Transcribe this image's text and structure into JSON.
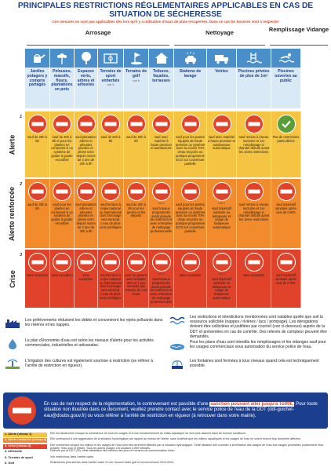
{
  "title": "Principales restrictions réglementaires applicables en cas de situation de sécheresse",
  "subtitle": "Ces mesures ne sont pas applicables dès lors qu'il y a utilisation d'eaux de pluie récupérées. Dans ce cas les horaires sont à respecter",
  "categories": {
    "arrosage": "Arrosage",
    "nettoyage": "Nettoyage",
    "remplissage": "Remplissage Vidange"
  },
  "usages": [
    {
      "label": "Jardins potagers y compris partagés",
      "note": "",
      "icon": "watering-can-icon"
    },
    {
      "label": "Pelouses, massifs, fleurs, plantations en pots",
      "note": "",
      "icon": "flower-icon"
    },
    {
      "label": "Espaces verts, arbres et arbustes",
      "note": "",
      "icon": "tree-icon"
    },
    {
      "label": "Terrains de sport enherbés",
      "note": "voir 5",
      "icon": "sport-field-icon"
    },
    {
      "label": "Terrains de golf",
      "note": "voir 6",
      "icon": "golf-icon"
    },
    {
      "label": "Toitures, façades, terrasses",
      "note": "",
      "icon": "house-icon"
    },
    {
      "label": "Stations de lavage",
      "note": "",
      "icon": "car-wash-icon"
    },
    {
      "label": "Voiries",
      "note": "",
      "icon": "truck-icon"
    },
    {
      "label": "Piscines privées de plus de 1m³",
      "note": "",
      "icon": "pool-icon"
    },
    {
      "label": "Piscines ouvertes au public",
      "note": "",
      "icon": "swimmer-icon"
    }
  ],
  "levels": [
    {
      "label": "Alerte",
      "num": "1",
      "color": "#f6c443",
      "cells": [
        {
          "text": "sauf de 20h à 8h",
          "sign": "no-entry",
          "note": ""
        },
        {
          "text": "sauf de 20h à 8h et pour les plantes en contenant si un système de goutte à goutte est utilisé",
          "sign": "no-entry",
          "note": ""
        },
        {
          "text": "sauf plantation arbres et arbustes plantés en pleine terre depuis moins de 2 ans de 20h à 8h",
          "sign": "no-entry",
          "note": ""
        },
        {
          "text": "sauf de 20h à 8h",
          "sign": "no-entry",
          "note": ""
        },
        {
          "text": "sauf de 20h à 8h",
          "sign": "no-entry",
          "note": ""
        },
        {
          "text": "sauf avec matériel à haute pression et autolaveuse",
          "sign": "no-entry",
          "note": ""
        },
        {
          "text": "sauf pour les postes équipés de haute pression ou système avec au moins 70% d'eau recyclée ou portique programme ECO sur couverture partielle",
          "sign": "no-entry",
          "note": ""
        },
        {
          "text": "sauf avec matériel à haute pression et autolaveuse automatique",
          "sign": "no-entry",
          "note": ""
        },
        {
          "text": "sauf remise à niveau nocturne et 1er remplissage si chantier débuté avant les 1ères restrictions",
          "sign": "no-entry",
          "note": ""
        },
        {
          "text": "Pas de restrictions particulières",
          "sign": "check",
          "note": ""
        }
      ]
    },
    {
      "label": "Alerte renforcée",
      "num": "2",
      "color": "#f18b2b",
      "cells": [
        {
          "text": "sauf de 20h à 8h",
          "sign": "no-entry",
          "note": ""
        },
        {
          "text": "sauf pour les plantes en contenant si un système de goutte à goutte est utilisé",
          "sign": "no-entry",
          "note": ""
        },
        {
          "text": "sauf plantation arbres et arbustes plantés en pleine terre depuis moins de 2 ans de 20h à 8h",
          "sign": "no-entry",
          "note": ""
        },
        {
          "text": "sauf terrains à enjeu national ou international dont l'arrosage sera minimal. L'eau de pluie sera privilégiée",
          "sign": "no-entry",
          "note": ""
        },
        {
          "text": "sauf de 20h à 8h pour les greens et les départs",
          "sign": "no-entry",
          "note": ""
        },
        {
          "text": "sauf travaux programmés avant période de restriction et avec entreprise de nettoyage professionnelle",
          "sign": "no-entry",
          "note": "voir 4"
        },
        {
          "text": "sauf pour les postes équipés de haute pression ou système avec au moins 70% d'eau recyclée ou portique programme ECO sur couverture partielle",
          "sign": "no-entry",
          "note": ""
        },
        {
          "text": "sauf impératif sanitaire ou balayeuse et usage de balayeuse automatique",
          "sign": "no-entry",
          "note": "voir 4"
        },
        {
          "text": "sauf remise à niveau nocturne et 1er remplissage si chantier débuté avant les 1ères restrictions",
          "sign": "no-entry",
          "note": ""
        },
        {
          "text": "sauf impératif sanitaire après avis de l'ARS",
          "sign": "no-entry",
          "note": ""
        }
      ]
    },
    {
      "label": "Crise",
      "num": "3",
      "color": "#e0432a",
      "cells": [
        {
          "text": "sans exception",
          "sign": "no-entry",
          "note": ""
        },
        {
          "text": "sans exception",
          "sign": "no-entry",
          "note": ""
        },
        {
          "text": "sans exception",
          "sign": "no-entry",
          "note": ""
        },
        {
          "text": "sauf terrains à enjeu national ou international dont l'arrosage sera minimal. L'eau de pluie sera privilégiée",
          "sign": "no-entry",
          "note": ""
        },
        {
          "text": "pour les greens avec limitation 30% et 1 jour semaine pas tranche de nuit trous",
          "sign": "no-entry",
          "note": ""
        },
        {
          "text": "sauf travaux programmés avant période de restriction et avec entreprise de nettoyage professionnelle",
          "sign": "no-entry",
          "note": "voir 4"
        },
        {
          "text": "sans exception",
          "sign": "no-entry",
          "note": ""
        },
        {
          "text": "sauf impératif sanitaire ou balayeuse et usage de balayeuse automatique",
          "sign": "no-entry",
          "note": "voir 4"
        },
        {
          "text": "sans exception",
          "sign": "no-entry",
          "note": ""
        },
        {
          "text": "sauf impératif sanitaire après avis de l'ARS",
          "sign": "no-entry",
          "note": ""
        }
      ]
    }
  ],
  "notes_left": [
    {
      "icon": "factory-icon",
      "text": "Les prélèvements réduisent les débits et concentrent les rejets polluants dans les rivières et les nappes."
    },
    {
      "icon": "water-drop-icon",
      "text": "Le plan d'économie d'eau est selon les niveaux d'alerte pour les activités commerciales, industrielles et artisanales."
    },
    {
      "icon": "irrigation-icon",
      "text": "L'irrigation des cultures est également soumise à restriction (se référer à l'arrêté de restriction en rigueur)."
    }
  ],
  "notes_right": [
    {
      "icon": "wave-icon",
      "text": "Les restrictions et interdictions mentionnées sont valables quelle que soit la ressource sollicitée (nappes / rivières / lacs / pompage). Les dérogations doivent être sollicitées et justifiées par courriel (voir ci-dessous) auprès de la DDT et présentées en cas de contrôle. Des relevés de compteur peuvent être demandés."
    },
    {
      "icon": "pond-icon",
      "text": "Pour les plans d'eau sont interdits les remplissages et les vidanges sauf pour les usages commerciaux sous autorisation du service police de l'eau."
    },
    {
      "icon": "fountain-icon",
      "text": "Les fontaines sont fermées à tous niveaux quand cela est techniquement possible."
    }
  ],
  "alert": {
    "part1": "En cas de non respect de la réglementation, le contrevenant est passible d'une ",
    "highlight": "sanction pouvant aller jusqu'à 1500€.",
    "part2": " Pour toute situation non illustrée dans ce document, veuillez prendre contact avec le service police de l'eau de la DDT (ddt-guichet-eau@doubs.gouv.fr) ou vous référer à l'arrêté de restriction en vigueur (à retrouver dans votre mairie)."
  },
  "legend": [
    {
      "key": "1. Alerte (niveau 1)",
      "desc": "Elle est déclenchée lorsque la coexistence de tous les usages et le bon fonctionnement du milieu aquatique ne sont plus assurés dans de bonnes conditions.",
      "style": "alerte"
    },
    {
      "key": "2. Alerte renforcée (niveau 2)",
      "desc": "Elle correspond à une aggravation de la situation hydrologique par rapport au niveau de l'alerte, sans toutefois que les milieux aquatiques et les usages de l'eau ne soient encore trop durement affectés.",
      "style": "renf"
    },
    {
      "key": "3. Crise (niveau 3)",
      "desc": "Elle commence lorsque les milieux et les usages de l'eau sont très durement affectés par la situation hydrologique. Cette situation doit conduire à la limitation des usages de l'eau aux usages prioritaires (notamment l'eau potable, l'eau pour le bétail). Tous les autres usages ont vocation à être interdits.",
      "style": "crise"
    },
    {
      "key": "4. Affichette",
      "desc": "Délivrée par la DDT (25), cette attestation fait mention des jours et horaires de consommation d'eau.",
      "style": ""
    },
    {
      "key": "5. Terrains de sport",
      "desc": "Voir restrictions dans l'arrêté cadre.",
      "style": ""
    },
    {
      "key": "6. Golf",
      "desc": "Restrictions plus strictes dans l'arrêté cadre et voir l'accord cadre golf et environnement 2019-2024.",
      "style": ""
    }
  ]
}
